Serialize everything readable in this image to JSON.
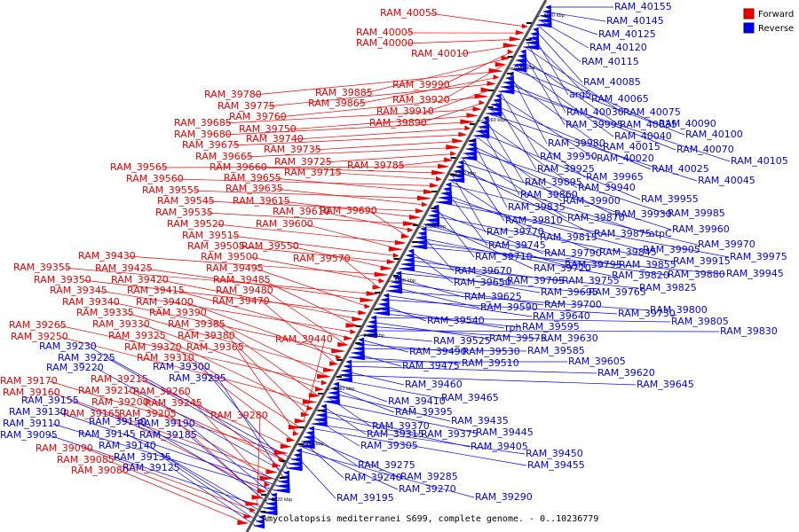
{
  "caption": "Amycolatopsis mediterranei S699, complete genome. - 0..10236779",
  "legend": [
    {
      "label": "Forward",
      "color": "#ee0000"
    },
    {
      "label": "Reverse",
      "color": "#0000ee"
    }
  ],
  "ticks": [
    "8420 kbp",
    "8440 kbp",
    "8460 kbp",
    "8480 kbp",
    "8500 kbp",
    "8520 kbp",
    "8540 kbp",
    "8560 kbp",
    "8580 kbp",
    "8600 kbp"
  ],
  "forward_labels": [
    "RAM_40055",
    "RAM_40005",
    "RAM_40000",
    "RAM_40010",
    "RAM_39990",
    "RAM_39885",
    "RAM_39920",
    "RAM_39780",
    "RAM_39865",
    "RAM_39775",
    "RAM_39910",
    "RAM_39760",
    "RAM_39890",
    "RAM_39685",
    "RAM_39750",
    "RAM_39680",
    "RAM_39740",
    "RAM_39675",
    "RAM_39735",
    "RAM_39665",
    "RAM_39725",
    "RAM_39785",
    "RAM_39565",
    "RAM_39660",
    "RAM_39715",
    "RAM_39560",
    "RAM_39655",
    "RAM_39555",
    "RAM_39635",
    "RAM_39545",
    "RAM_39615",
    "RAM_39535",
    "RAM_39610",
    "RAM_39690",
    "RAM_39520",
    "RAM_39600",
    "RAM_39515",
    "RAM_39505",
    "RAM_39550",
    "RAM_39430",
    "RAM_39500",
    "RAM_39570",
    "RAM_39355",
    "RAM_39425",
    "RAM_39495",
    "RAM_39350",
    "RAM_39420",
    "RAM_39485",
    "RAM_39345",
    "RAM_39415",
    "RAM_39480",
    "RAM_39340",
    "RAM_39400",
    "RAM_39470",
    "RAM_39335",
    "RAM_39390",
    "RAM_39265",
    "RAM_39330",
    "RAM_39385",
    "RAM_39250",
    "RAM_39325",
    "RAM_39380",
    "RAM_39440",
    "RAM_39320",
    "RAM_39365",
    "RAM_39310",
    "RAM_39215",
    "RAM_39170",
    "RAM_39210",
    "RAM_39260",
    "RAM_39160",
    "RAM_39200",
    "RAM_39245",
    "RAM_39165",
    "RAM_39205",
    "RAM_39280",
    "RAM_39090",
    "RAM_39085",
    "RAM_39080"
  ],
  "reverse_labels": [
    "RAM_40155",
    "RAM_40145",
    "RAM_40125",
    "RAM_40120",
    "RAM_40115",
    "RAM_40085",
    "argS",
    "RAM_40065",
    "RAM_40030",
    "RAM_40075",
    "RAM_39995",
    "RAM_40035",
    "RAM_40090",
    "RAM_40040",
    "RAM_40100",
    "RAM_39980",
    "RAM_40015",
    "RAM_40070",
    "RAM_40105",
    "RAM_39950",
    "RAM_40020",
    "RAM_39925",
    "RAM_40025",
    "RAM_39965",
    "RAM_40045",
    "RAM_39895",
    "RAM_39940",
    "RAM_39860",
    "RAM_39955",
    "RAM_39900",
    "RAM_39835",
    "RAM_39930",
    "RAM_39985",
    "RAM_39870",
    "RAM_39810",
    "RAM_39960",
    "RAM_39875",
    "atpC",
    "RAM_39770",
    "RAM_39815",
    "RAM_39970",
    "RAM_39745",
    "RAM_39845",
    "RAM_39905",
    "RAM_39975",
    "RAM_39710",
    "RAM_39790",
    "RAM_39915",
    "RAM_39720",
    "RAM_39795",
    "RAM_39855",
    "RAM_39670",
    "RAM_39820",
    "RAM_39880",
    "RAM_39945",
    "RAM_39650",
    "RAM_39705",
    "RAM_39755",
    "RAM_39825",
    "RAM_39695",
    "RAM_39765",
    "RAM_39625",
    "RAM_39700",
    "RAM_39590",
    "RAM_39800",
    "RAM_39640",
    "RAM_39730",
    "RAM_39540",
    "rph",
    "RAM_39595",
    "RAM_39805",
    "RAM_39575",
    "RAM_39630",
    "RAM_39830",
    "RAM_39525",
    "RAM_39490",
    "RAM_39530",
    "RAM_39585",
    "RAM_39475",
    "RAM_39510",
    "RAM_39605",
    "RAM_39620",
    "RAM_39460",
    "RAM_39645",
    "RAM_39465",
    "RAM_39410",
    "RAM_39395",
    "RAM_39435",
    "RAM_39370",
    "RAM_39445",
    "RAM_39315",
    "RAM_39375",
    "RAM_39405",
    "RAM_39305",
    "RAM_39450",
    "RAM_39455",
    "RAM_39275",
    "RAM_39285",
    "RAM_39240",
    "RAM_39270",
    "RAM_39290",
    "RAM_39195",
    "RAM_39230",
    "RAM_39225",
    "RAM_39300",
    "RAM_39220",
    "RAM_39295",
    "RAM_39155",
    "RAM_39130",
    "RAM_39110",
    "RAM_39190",
    "RAM_39150",
    "RAM_39185",
    "RAM_39095",
    "RAM_39145",
    "RAM_39140",
    "RAM_39135",
    "RAM_39125"
  ]
}
